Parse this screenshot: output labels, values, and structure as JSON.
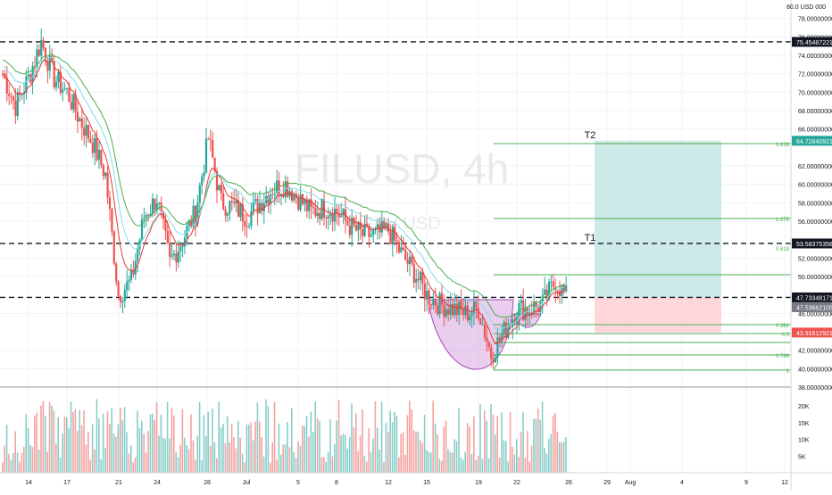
{
  "watermark": {
    "symbol": "FILUSD",
    "interval": "4h",
    "subtitle": "FIL / USD"
  },
  "price_axis": {
    "currency_label": "80.0 USD 000",
    "ticks": [
      {
        "value": 78,
        "label": "78.00000000"
      },
      {
        "value": 76,
        "label": "76.00000000"
      },
      {
        "value": 74,
        "label": "74.00000000"
      },
      {
        "value": 72,
        "label": "72.00000000"
      },
      {
        "value": 70,
        "label": "70.00000000"
      },
      {
        "value": 68,
        "label": "68.00000000"
      },
      {
        "value": 66,
        "label": "66.00000000"
      },
      {
        "value": 62,
        "label": "62.00000000"
      },
      {
        "value": 60,
        "label": "60.00000000"
      },
      {
        "value": 58,
        "label": "58.00000000"
      },
      {
        "value": 56,
        "label": "56.00000000"
      },
      {
        "value": 52,
        "label": "52.00000000"
      },
      {
        "value": 50,
        "label": "50.00000000"
      },
      {
        "value": 46,
        "label": "46.00000000"
      },
      {
        "value": 42,
        "label": "42.00000000"
      },
      {
        "value": 40,
        "label": "40.00000000"
      },
      {
        "value": 38,
        "label": "38.00000000"
      }
    ],
    "price_tags": [
      {
        "value": 75.45487221,
        "label": "75.45487221",
        "bg": "#131722",
        "fg": "#ffffff"
      },
      {
        "value": 64.72840921,
        "label": "64.72840921",
        "bg": "#26a69a",
        "fg": "#ffffff"
      },
      {
        "value": 53.58375358,
        "label": "53.58375358",
        "bg": "#131722",
        "fg": "#ffffff"
      },
      {
        "value": 47.73348171,
        "label": "47.73348171",
        "bg": "#131722",
        "fg": "#ffffff"
      },
      {
        "value": 47.53662105,
        "label": "47.53662105",
        "bg": "#787b86",
        "fg": "#ffffff"
      },
      {
        "value": 43.91612921,
        "label": "43.91612921",
        "bg": "#ef5350",
        "fg": "#ffffff"
      }
    ]
  },
  "volume_axis": {
    "ticks": [
      {
        "value": 20000,
        "label": "20K"
      },
      {
        "value": 15000,
        "label": "15K"
      },
      {
        "value": 10000,
        "label": "10K"
      },
      {
        "value": 5000,
        "label": "5K"
      }
    ]
  },
  "time_axis": {
    "labels": [
      "14",
      "17",
      "21",
      "24",
      "28",
      "Jul",
      "5",
      "8",
      "12",
      "15",
      "19",
      "22",
      "26",
      "29",
      "Aug",
      "4",
      "9",
      "12"
    ]
  },
  "horizontal_levels": [
    75.45487221,
    53.58375358,
    47.73348171
  ],
  "targets": [
    {
      "label": "T2",
      "value": 64.72840921
    },
    {
      "label": "T1",
      "value": 53.58375358
    }
  ],
  "fib_levels": [
    {
      "ratio": 1.618,
      "label": "1.618",
      "value": 56.4
    },
    {
      "ratio": 1.272,
      "label": "1.272",
      "value": 50.4
    },
    {
      "ratio": 1,
      "label": "1",
      "value": 45.5
    },
    {
      "ratio": 0.786,
      "label": "0.786",
      "value": 44.4
    },
    {
      "ratio": 0.618,
      "label": "0.618",
      "value": 42.9
    },
    {
      "ratio": 0.5,
      "label": "0.5",
      "value": 41.2
    },
    {
      "ratio": 0.382,
      "label": "0.382",
      "value": 39.6
    }
  ],
  "position": {
    "entry": 47.73348171,
    "target": 64.72840921,
    "stop": 43.91612921
  },
  "colors": {
    "up": "#26a69a",
    "down": "#ef5350",
    "grid": "#f0f3fa",
    "level_line": "#131722",
    "fib_line": "#4caf50",
    "ema_green": "#4caf50",
    "ema_cyan": "#80deea",
    "ema_red": "#e53935",
    "cup_fill": "#ce93d8",
    "profit_zone": "#b2dfdb",
    "loss_zone": "#ffcdd2"
  },
  "chart_data": {
    "type": "candlestick",
    "symbol": "FILUSD",
    "interval": "4h",
    "ylim": [
      38,
      80
    ],
    "close_points": [
      {
        "x": "Jun 12",
        "y": 72.0
      },
      {
        "x": "Jun 13",
        "y": 68.5
      },
      {
        "x": "Jun 14",
        "y": 71.5
      },
      {
        "x": "Jun 15",
        "y": 75.5
      },
      {
        "x": "Jun 16",
        "y": 71.5
      },
      {
        "x": "Jun 17",
        "y": 70.0
      },
      {
        "x": "Jun 18",
        "y": 67.0
      },
      {
        "x": "Jun 19",
        "y": 64.5
      },
      {
        "x": "Jun 20",
        "y": 61.0
      },
      {
        "x": "Jun 21",
        "y": 48.0
      },
      {
        "x": "Jun 22",
        "y": 49.5
      },
      {
        "x": "Jun 23",
        "y": 56.5
      },
      {
        "x": "Jun 24",
        "y": 58.5
      },
      {
        "x": "Jun 25",
        "y": 51.5
      },
      {
        "x": "Jun 26",
        "y": 54.0
      },
      {
        "x": "Jun 27",
        "y": 57.0
      },
      {
        "x": "Jun 28",
        "y": 65.0
      },
      {
        "x": "Jun 29",
        "y": 58.0
      },
      {
        "x": "Jun 30",
        "y": 57.5
      },
      {
        "x": "Jul 1",
        "y": 56.5
      },
      {
        "x": "Jul 2",
        "y": 58.0
      },
      {
        "x": "Jul 3",
        "y": 59.5
      },
      {
        "x": "Jul 4",
        "y": 60.0
      },
      {
        "x": "Jul 5",
        "y": 58.5
      },
      {
        "x": "Jul 6",
        "y": 57.0
      },
      {
        "x": "Jul 7",
        "y": 57.5
      },
      {
        "x": "Jul 8",
        "y": 57.0
      },
      {
        "x": "Jul 9",
        "y": 55.5
      },
      {
        "x": "Jul 10",
        "y": 54.5
      },
      {
        "x": "Jul 11",
        "y": 54.5
      },
      {
        "x": "Jul 12",
        "y": 55.0
      },
      {
        "x": "Jul 13",
        "y": 52.5
      },
      {
        "x": "Jul 14",
        "y": 50.5
      },
      {
        "x": "Jul 15",
        "y": 48.0
      },
      {
        "x": "Jul 16",
        "y": 47.0
      },
      {
        "x": "Jul 17",
        "y": 46.5
      },
      {
        "x": "Jul 18",
        "y": 46.0
      },
      {
        "x": "Jul 19",
        "y": 46.5
      },
      {
        "x": "Jul 20",
        "y": 41.5
      },
      {
        "x": "Jul 21",
        "y": 44.0
      },
      {
        "x": "Jul 22",
        "y": 46.5
      },
      {
        "x": "Jul 23",
        "y": 46.5
      },
      {
        "x": "Jul 24",
        "y": 47.0
      },
      {
        "x": "Jul 25",
        "y": 49.5
      },
      {
        "x": "Jul 26",
        "y": 47.5
      }
    ]
  }
}
